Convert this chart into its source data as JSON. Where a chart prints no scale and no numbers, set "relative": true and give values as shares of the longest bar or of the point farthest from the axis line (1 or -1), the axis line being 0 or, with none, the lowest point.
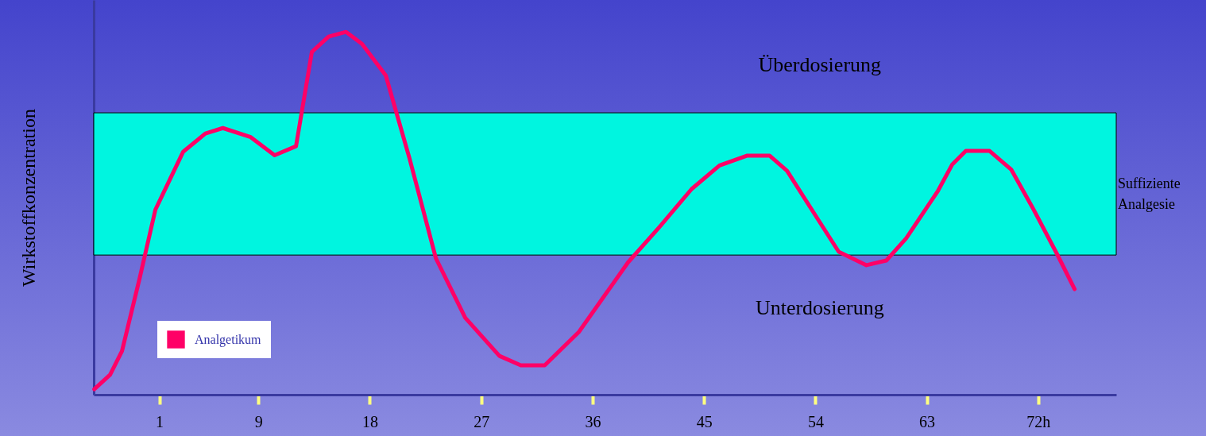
{
  "chart_data": {
    "type": "line",
    "ylabel": "Wirkstoffkonzentration",
    "relative": true,
    "grid": false,
    "legend": "bottom left",
    "marker": "none",
    "line_style": "solid",
    "xlim": [
      -4.3,
      78.3
    ],
    "xticks": [
      1,
      9,
      18,
      27,
      36,
      45,
      54,
      63,
      {
        "value": 72,
        "label": "72h"
      }
    ],
    "x": [
      -4.26,
      -2.98,
      -2.02,
      -0.6,
      0.68,
      2.93,
      4.72,
      6.13,
      8.38,
      10.31,
      12.04,
      13.32,
      14.67,
      16.08,
      17.37,
      19.29,
      21.22,
      23.34,
      25.71,
      28.47,
      30.2,
      32.13,
      34.89,
      38.87,
      41.44,
      44.0,
      46.25,
      48.5,
      50.29,
      51.71,
      53.95,
      55.88,
      58.12,
      59.73,
      61.33,
      63.9,
      65.06,
      66.15,
      68.07,
      69.81,
      71.6,
      73.53,
      74.94
    ],
    "series": [
      {
        "name": "Analgetikum",
        "color": "#ff0066",
        "values": [
          0.015,
          0.055,
          0.12,
          0.32,
          0.51,
          0.67,
          0.72,
          0.735,
          0.71,
          0.66,
          0.685,
          0.945,
          0.987,
          1.0,
          0.967,
          0.88,
          0.65,
          0.376,
          0.212,
          0.107,
          0.081,
          0.081,
          0.173,
          0.365,
          0.464,
          0.567,
          0.632,
          0.659,
          0.659,
          0.617,
          0.497,
          0.394,
          0.357,
          0.37,
          0.431,
          0.562,
          0.635,
          0.672,
          0.672,
          0.621,
          0.512,
          0.387,
          0.291
        ]
      }
    ],
    "bands": [
      {
        "axis": "y",
        "from": 0.385,
        "to": 0.777,
        "label": "Suffiziente Analgesie",
        "color": "#00f5e0"
      }
    ],
    "annotations": [
      "Überdosierung",
      "Unterdosierung"
    ]
  }
}
